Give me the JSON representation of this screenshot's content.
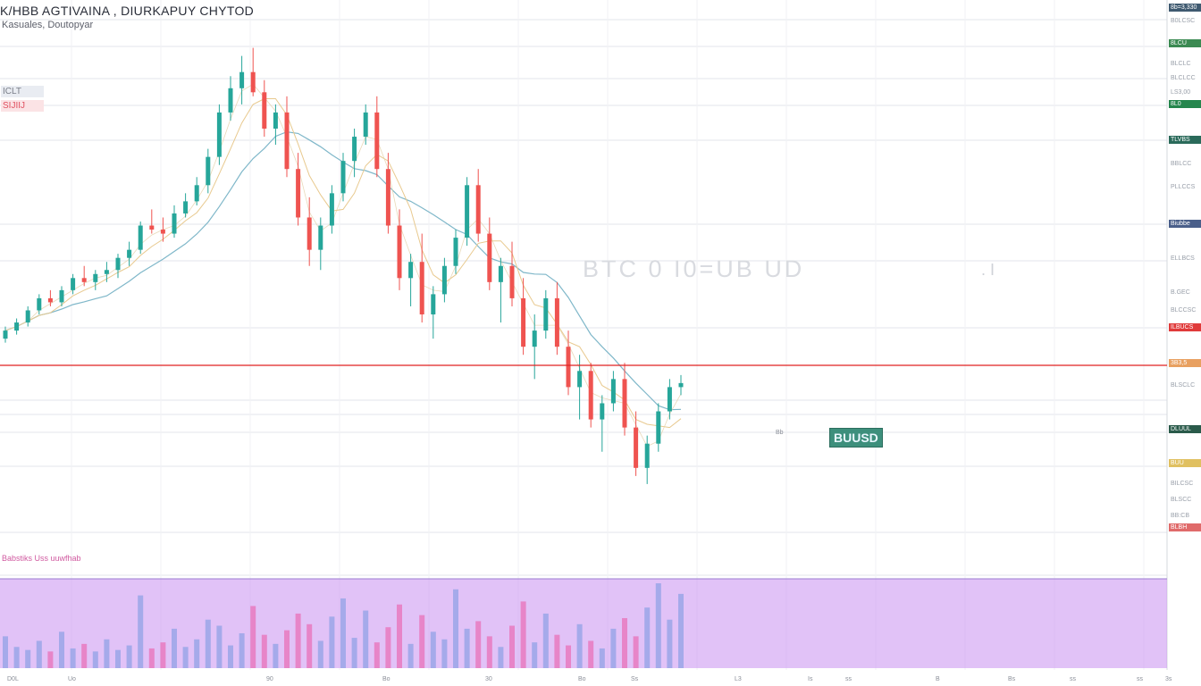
{
  "header": {
    "title": "K/HBB  AGTIVAINA  ,  DIURKAPUY CHYTOD",
    "subtitle": "Kasuales, Doutopyar",
    "volume_label": "Babstiks Uss  uuwfhab",
    "legend_badge_top": "ICLT",
    "legend_badge_bottom": "SIJIIJ"
  },
  "watermark": "BTC 0  I0=UB  UD",
  "watermark_dots": ". I",
  "callout_label": "BUUSD",
  "callout_small": "Bb",
  "colors": {
    "up": "#26a69a",
    "down": "#ef5350",
    "ma_fast": "#e8c98e",
    "ma_slow": "#7fb7c9",
    "price_line": "#e02020",
    "volume_band": "#c890f0",
    "background": "#ffffff"
  },
  "price_tags": [
    {
      "text": "8b=3,330",
      "color": "#3f5a70"
    },
    {
      "text": "8LCU",
      "color": "#3b8a52"
    },
    {
      "text": "8L0",
      "color": "#25864d"
    },
    {
      "text": "TLVBS",
      "color": "#2a6a5a"
    },
    {
      "text": "Biubbe",
      "color": "#4a5f8a"
    },
    {
      "text": "ILBUCS",
      "color": "#e03a3a"
    },
    {
      "text": "3B3,5",
      "color": "#e8a060"
    },
    {
      "text": "DLUUL",
      "color": "#2a5a4a"
    },
    {
      "text": "BUU",
      "color": "#e0c060"
    },
    {
      "text": "BLBH",
      "color": "#e06a6a"
    }
  ],
  "axis_ticks": [
    "B0LCSC",
    "BLCLC",
    "BLCLCC",
    "LS3,00",
    "BBLCC",
    "PLLCCS",
    "ELLBCS",
    "B.GEC",
    "BLCCSC",
    "BLSCLC",
    "BILCSC",
    "BLSCC",
    "BB:CB"
  ],
  "time_ticks": [
    "D0L",
    "Uo",
    "90",
    "Bo",
    "30",
    "Bo",
    "Ss",
    "L3",
    "Is",
    "ss",
    "B",
    "Bs",
    "ss",
    "ss",
    "3s"
  ],
  "chart_data": {
    "type": "candlestick",
    "title": "K/HBB  AGTIVAINA  ,  DIURKAPUY CHYTOD",
    "series": [
      {
        "type": "candlestick",
        "ohlc": [
          [
            1,
            100,
            103,
            99,
            102
          ],
          [
            2,
            102,
            105,
            101,
            104
          ],
          [
            3,
            104,
            108,
            103,
            107
          ],
          [
            4,
            107,
            111,
            106,
            110
          ],
          [
            5,
            110,
            112,
            108,
            109
          ],
          [
            6,
            109,
            113,
            108,
            112
          ],
          [
            7,
            112,
            116,
            111,
            115
          ],
          [
            8,
            115,
            118,
            113,
            114
          ],
          [
            9,
            114,
            117,
            112,
            116
          ],
          [
            10,
            116,
            119,
            114,
            117
          ],
          [
            11,
            117,
            121,
            115,
            120
          ],
          [
            12,
            120,
            124,
            118,
            122
          ],
          [
            13,
            122,
            129,
            121,
            128
          ],
          [
            14,
            128,
            132,
            126,
            127
          ],
          [
            15,
            127,
            130,
            124,
            126
          ],
          [
            16,
            126,
            133,
            125,
            131
          ],
          [
            17,
            131,
            136,
            130,
            134
          ],
          [
            18,
            134,
            140,
            133,
            138
          ],
          [
            19,
            138,
            147,
            136,
            145
          ],
          [
            20,
            145,
            158,
            143,
            156
          ],
          [
            21,
            156,
            165,
            154,
            162
          ],
          [
            22,
            162,
            170,
            158,
            166
          ],
          [
            23,
            166,
            172,
            160,
            161
          ],
          [
            24,
            161,
            164,
            150,
            152
          ],
          [
            25,
            152,
            158,
            148,
            156
          ],
          [
            26,
            156,
            160,
            140,
            142
          ],
          [
            27,
            142,
            146,
            128,
            130
          ],
          [
            28,
            130,
            135,
            118,
            122
          ],
          [
            29,
            122,
            130,
            117,
            128
          ],
          [
            30,
            128,
            138,
            126,
            136
          ],
          [
            31,
            136,
            146,
            134,
            144
          ],
          [
            32,
            144,
            152,
            140,
            150
          ],
          [
            33,
            150,
            158,
            148,
            156
          ],
          [
            34,
            156,
            160,
            140,
            142
          ],
          [
            35,
            142,
            146,
            126,
            128
          ],
          [
            36,
            128,
            132,
            112,
            115
          ],
          [
            37,
            115,
            121,
            108,
            119
          ],
          [
            38,
            119,
            126,
            104,
            106
          ],
          [
            39,
            106,
            113,
            100,
            111
          ],
          [
            40,
            111,
            120,
            109,
            118
          ],
          [
            41,
            118,
            127,
            116,
            125
          ],
          [
            42,
            125,
            140,
            123,
            138
          ],
          [
            43,
            138,
            142,
            124,
            126
          ],
          [
            44,
            126,
            130,
            112,
            114
          ],
          [
            45,
            114,
            120,
            104,
            118
          ],
          [
            46,
            118,
            124,
            108,
            110
          ],
          [
            47,
            110,
            115,
            96,
            98
          ],
          [
            48,
            98,
            106,
            90,
            102
          ],
          [
            49,
            102,
            112,
            100,
            110
          ],
          [
            50,
            110,
            114,
            96,
            98
          ],
          [
            51,
            98,
            102,
            86,
            88
          ],
          [
            52,
            88,
            96,
            80,
            92
          ],
          [
            53,
            92,
            94,
            78,
            80
          ],
          [
            54,
            80,
            86,
            72,
            84
          ],
          [
            55,
            84,
            92,
            82,
            90
          ],
          [
            56,
            90,
            94,
            76,
            78
          ],
          [
            57,
            78,
            82,
            66,
            68
          ],
          [
            58,
            68,
            76,
            64,
            74
          ],
          [
            59,
            74,
            84,
            72,
            82
          ],
          [
            60,
            82,
            90,
            80,
            88
          ],
          [
            61,
            88,
            91,
            86,
            89
          ]
        ]
      }
    ],
    "volume_series": [
      2.1,
      1.4,
      1.2,
      1.8,
      1.1,
      2.4,
      1.3,
      1.6,
      1.1,
      1.9,
      1.2,
      1.5,
      4.8,
      1.3,
      1.7,
      2.6,
      1.4,
      1.9,
      3.2,
      2.8,
      1.5,
      2.3,
      4.1,
      2.2,
      1.6,
      2.5,
      3.6,
      2.9,
      1.8,
      3.4,
      4.6,
      2.0,
      3.8,
      1.7,
      2.7,
      4.2,
      1.6,
      3.5,
      2.4,
      1.9,
      5.2,
      2.6,
      3.1,
      2.1,
      1.4,
      2.8,
      4.4,
      1.7,
      3.6,
      2.2,
      1.5,
      2.9,
      1.8,
      1.3,
      2.6,
      3.3,
      2.1,
      4.0,
      5.6,
      3.2,
      4.9
    ],
    "ma_fast_label": "",
    "ma_slow_label": "",
    "price_line_label": "ILBUCS",
    "grid": true,
    "legend": "top-left"
  }
}
